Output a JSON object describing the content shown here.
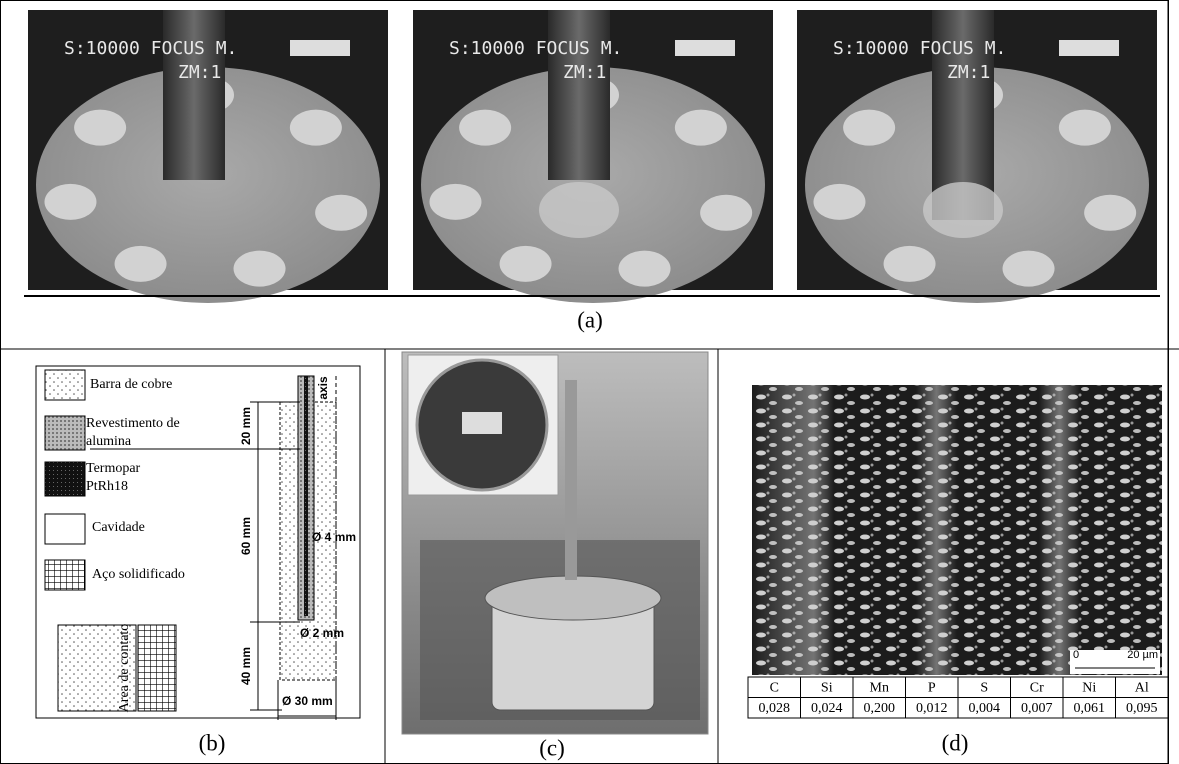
{
  "panel_a": {
    "label": "(a)",
    "frames": [
      {
        "overlay": "S:10000  FOCUS M.",
        "zoom": "ZM:1"
      },
      {
        "overlay": "S:10000  FOCUS M.",
        "zoom": "ZM:1"
      },
      {
        "overlay": "S:10000  FOCUS M.",
        "zoom": "ZM:1"
      }
    ]
  },
  "panel_b": {
    "label": "(b)",
    "legend": [
      "Barra de cobre",
      "Revestimento de",
      "alumina",
      "Termopar",
      "PtRh18",
      "Cavidade",
      "Aço solidificado"
    ],
    "contact_area": "Area de contato",
    "axis": "axis",
    "dimensions": [
      "20 mm",
      "60 mm",
      "40 mm",
      "Ø 4 mm",
      "Ø 2 mm",
      "Ø 30 mm"
    ]
  },
  "panel_c": {
    "label": "(c)"
  },
  "panel_d": {
    "label": "(d)",
    "scale_bar": [
      "0",
      "20 µm"
    ],
    "table": {
      "header": [
        "C",
        "Si",
        "Mn",
        "P",
        "S",
        "Cr",
        "Ni",
        "Al"
      ],
      "rows": [
        [
          "0,028",
          "0,024",
          "0,200",
          "0,012",
          "0,004",
          "0,007",
          "0,061",
          "0,095"
        ]
      ]
    }
  }
}
